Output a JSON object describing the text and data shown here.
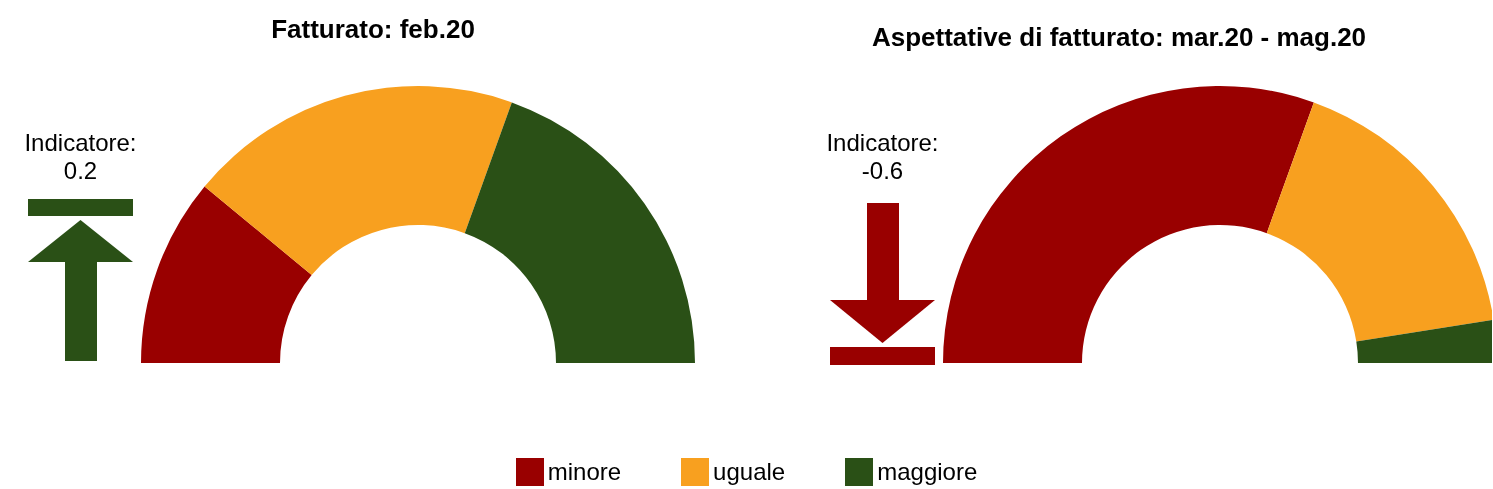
{
  "chart_data": [
    {
      "type": "donut",
      "title": "Fatturato: feb.20",
      "categories": [
        "minore",
        "uguale",
        "maggiore"
      ],
      "values": [
        22,
        39,
        39
      ],
      "colors": [
        "#990000",
        "#f8a01f",
        "#2a5016"
      ],
      "annotations": [
        "Indicatore:\n0.2"
      ],
      "legend": "bottom"
    },
    {
      "type": "donut",
      "title": "Aspettative di fatturato: mar.20 - mag.20",
      "categories": [
        null,
        null,
        null
      ],
      "values": [
        61,
        34,
        5
      ],
      "colors": [
        "#990000",
        "#f8a01f",
        "#2a5016"
      ],
      "annotations": [
        "Indicatore:\n-0.6"
      ]
    }
  ]
}
